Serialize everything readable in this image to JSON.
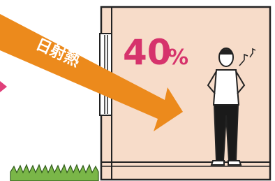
{
  "arrow_label": "日射熱",
  "percentage": {
    "number": "40",
    "unit": "%"
  }
}
